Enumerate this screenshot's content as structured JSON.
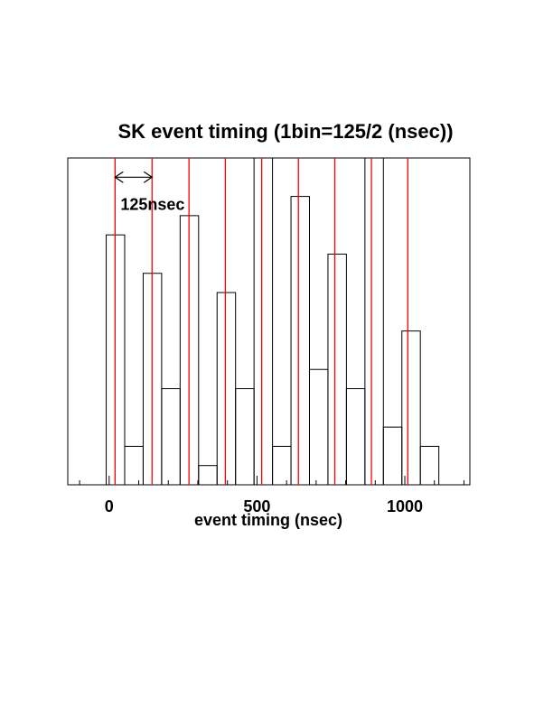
{
  "chart_data": {
    "type": "histogram",
    "title": "SK event timing (1bin=125/2 (nsec))",
    "xlabel": "event timing (nsec)",
    "ylabel": "",
    "xlim": [
      -140,
      1220
    ],
    "ylim": [
      0,
      17
    ],
    "grid": false,
    "xticks": [
      0,
      500,
      1000
    ],
    "bin_width": 62.5,
    "bin_start": -10,
    "values": [
      13,
      2,
      11,
      5,
      14,
      1,
      10,
      5,
      17,
      2,
      15,
      6,
      12,
      5,
      17,
      3,
      8,
      2
    ],
    "reference_lines": {
      "color": "#ff0000",
      "x": [
        20,
        145,
        270,
        393,
        516,
        640,
        763,
        887,
        1010
      ]
    },
    "annotation": {
      "text": "125nsec",
      "x_start": 20,
      "x_end": 145,
      "y": 16
    }
  }
}
